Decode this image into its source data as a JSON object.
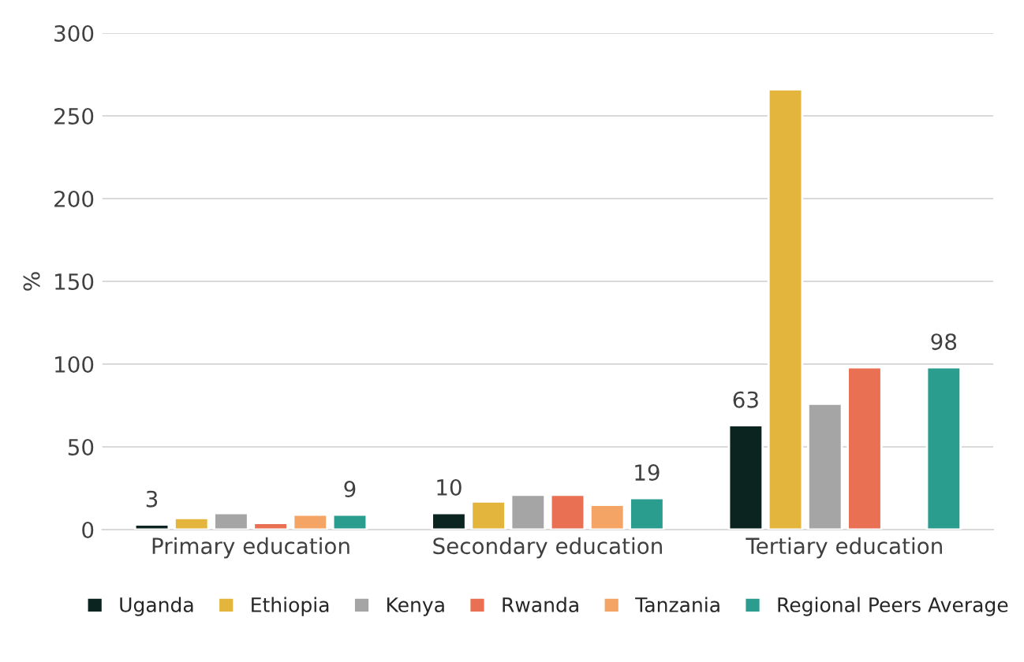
{
  "chart_data": {
    "type": "bar",
    "ylabel": "%",
    "categories": [
      "Primary education",
      "Secondary education",
      "Tertiary education"
    ],
    "series": [
      {
        "name": "Uganda",
        "color": "#0b2420",
        "values": [
          3,
          10,
          63
        ],
        "value_labels": [
          "3",
          "10",
          "63"
        ]
      },
      {
        "name": "Ethiopia",
        "color": "#e3b53c",
        "values": [
          7,
          17,
          266
        ]
      },
      {
        "name": "Kenya",
        "color": "#a5a5a5",
        "values": [
          10,
          21,
          76
        ]
      },
      {
        "name": "Rwanda",
        "color": "#e97053",
        "values": [
          4,
          21,
          98
        ]
      },
      {
        "name": "Tanzania",
        "color": "#f4a464",
        "values": [
          9,
          15,
          null
        ]
      },
      {
        "name": "Regional Peers Average",
        "color": "#2a9d8f",
        "values": [
          9,
          19,
          98
        ],
        "value_labels": [
          "9",
          "19",
          "98"
        ]
      }
    ],
    "ylim": [
      0,
      300
    ],
    "yticks": [
      0,
      50,
      100,
      150,
      200,
      250,
      300
    ],
    "grid": "y",
    "legend": "bottom"
  }
}
